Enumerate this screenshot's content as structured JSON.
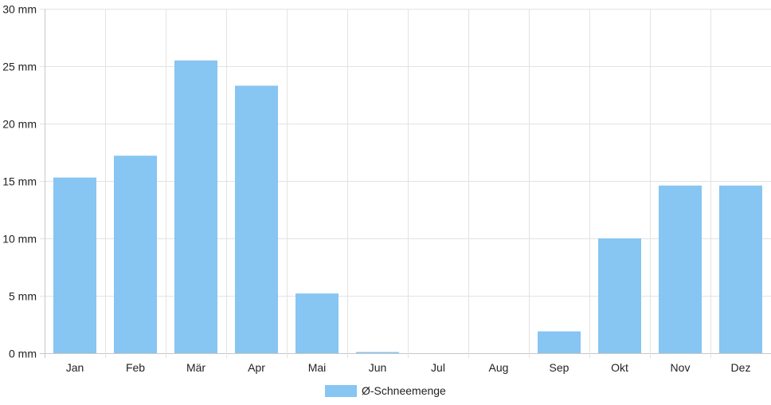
{
  "chart_data": {
    "type": "bar",
    "categories": [
      "Jan",
      "Feb",
      "Mär",
      "Apr",
      "Mai",
      "Jun",
      "Jul",
      "Aug",
      "Sep",
      "Okt",
      "Nov",
      "Dez"
    ],
    "series": [
      {
        "name": "Ø-Schneemenge",
        "values": [
          15.3,
          17.2,
          25.5,
          23.3,
          5.2,
          0.1,
          0,
          0,
          1.9,
          10.0,
          14.6,
          14.6
        ],
        "color": "#87c5f2"
      }
    ],
    "y_ticks": [
      "0 mm",
      "5 mm",
      "10 mm",
      "15 mm",
      "20 mm",
      "25 mm",
      "30 mm"
    ],
    "ylim": [
      0,
      30
    ],
    "grid": true,
    "legend_position": "bottom-center"
  }
}
